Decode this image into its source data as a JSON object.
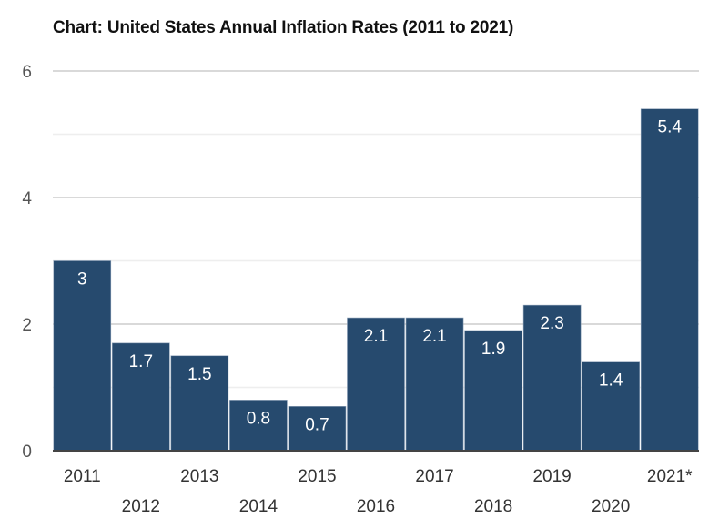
{
  "chart_data": {
    "type": "bar",
    "title": "Chart: United States Annual Inflation Rates (2011 to 2021)",
    "xlabel": "",
    "ylabel": "",
    "categories": [
      "2011",
      "2012",
      "2013",
      "2014",
      "2015",
      "2016",
      "2017",
      "2018",
      "2019",
      "2020",
      "2021*"
    ],
    "values": [
      3,
      1.7,
      1.5,
      0.8,
      0.7,
      2.1,
      2.1,
      1.9,
      2.3,
      1.4,
      5.4
    ],
    "data_labels": [
      "3",
      "1.7",
      "1.5",
      "0.8",
      "0.7",
      "2.1",
      "2.1",
      "1.9",
      "2.3",
      "1.4",
      "5.4"
    ],
    "ylim": [
      0,
      6
    ],
    "y_ticks": [
      0,
      2,
      4,
      6
    ],
    "y_tick_labels": [
      "0",
      "2",
      "4",
      "6"
    ],
    "minor_gridlines": [
      1,
      3,
      5
    ],
    "grid": true,
    "legend": "none",
    "colors": {
      "bar": "#264a6e",
      "grid_major": "#d9d9d9",
      "grid_minor": "#eeeeee",
      "axis": "#444444"
    }
  }
}
